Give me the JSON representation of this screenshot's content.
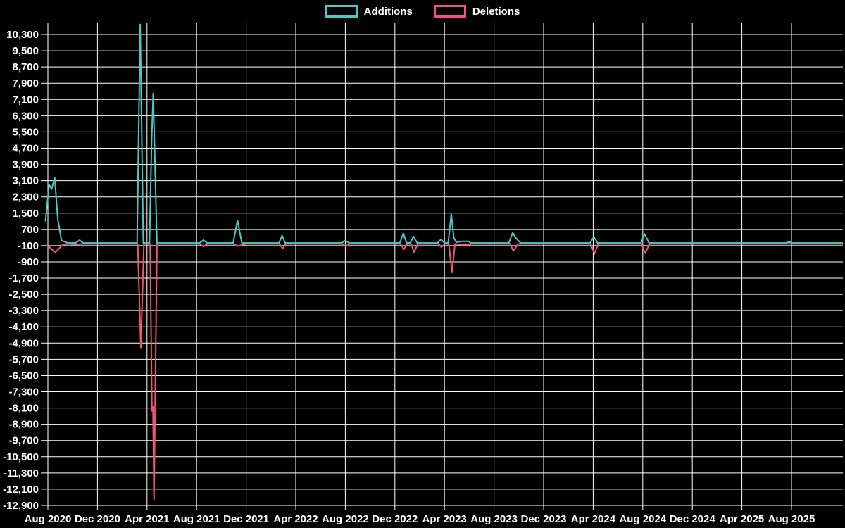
{
  "legend": {
    "items": [
      {
        "label": "Additions",
        "color": "#4dc8c2"
      },
      {
        "label": "Deletions",
        "color": "#f4547c"
      }
    ]
  },
  "colors": {
    "background": "#000000",
    "grid": "#ffffff",
    "text": "#ffffff",
    "additions": "#4dc8c2",
    "deletions": "#f4547c"
  },
  "chart_data": {
    "type": "line",
    "title": "",
    "xlabel": "",
    "ylabel": "",
    "legend_position": "top-center",
    "grid": true,
    "ylim": [
      -12900,
      10300
    ],
    "y_tick_step": 800,
    "y_ticks": [
      10300,
      9500,
      8700,
      7900,
      7100,
      6300,
      5500,
      4700,
      3900,
      3100,
      2300,
      1500,
      700,
      -100,
      -900,
      -1700,
      -2500,
      -3300,
      -4100,
      -4900,
      -5700,
      -6500,
      -7300,
      -8100,
      -8900,
      -9700,
      -10500,
      -11300,
      -12100,
      -12900
    ],
    "y_tick_labels": [
      "10,300",
      "9,500",
      "8,700",
      "7,900",
      "7,100",
      "6,300",
      "5,500",
      "4,700",
      "3,900",
      "3,100",
      "2,300",
      "1,500",
      "700",
      "-100",
      "-900",
      "-1,700",
      "-2,500",
      "-3,300",
      "-4,100",
      "-4,900",
      "-5,700",
      "-6,500",
      "-7,300",
      "-8,100",
      "-8,900",
      "-9,700",
      "-10,500",
      "-11,300",
      "-12,100",
      "-12,900"
    ],
    "x_tick_labels": [
      "Aug 2020",
      "Dec 2020",
      "Apr 2021",
      "Aug 2021",
      "Dec 2021",
      "Apr 2022",
      "Aug 2022",
      "Dec 2022",
      "Apr 2023",
      "Aug 2023",
      "Dec 2023",
      "Apr 2024",
      "Aug 2024",
      "Dec 2024",
      "Apr 2025",
      "Aug 2025"
    ],
    "x_unit": "months since Aug 2020 (x ticks every 4 months)",
    "series": [
      {
        "name": "Deletions",
        "color": "#f4547c",
        "points": [
          [
            -0.2,
            -60
          ],
          [
            0.1,
            -160
          ],
          [
            0.6,
            -430
          ],
          [
            1.15,
            -80
          ],
          [
            1.6,
            -15
          ],
          [
            2.3,
            -40
          ],
          [
            2.8,
            -15
          ],
          [
            7.25,
            -15
          ],
          [
            7.5,
            -5150
          ],
          [
            7.75,
            -15
          ],
          [
            8.25,
            -15
          ],
          [
            8.4,
            -8240
          ],
          [
            8.48,
            -8000
          ],
          [
            8.56,
            -12600
          ],
          [
            8.8,
            -15
          ],
          [
            12.25,
            -15
          ],
          [
            12.55,
            -140
          ],
          [
            12.85,
            -15
          ],
          [
            14.95,
            -15
          ],
          [
            15.3,
            -120
          ],
          [
            15.7,
            -60
          ],
          [
            16.0,
            -15
          ],
          [
            18.7,
            -15
          ],
          [
            18.95,
            -250
          ],
          [
            19.2,
            -15
          ],
          [
            23.75,
            -15
          ],
          [
            24.05,
            -140
          ],
          [
            24.35,
            -15
          ],
          [
            28.45,
            -15
          ],
          [
            28.72,
            -280
          ],
          [
            29.0,
            -15
          ],
          [
            29.3,
            -15
          ],
          [
            29.55,
            -420
          ],
          [
            29.85,
            -15
          ],
          [
            31.5,
            -15
          ],
          [
            31.75,
            -170
          ],
          [
            32.05,
            -15
          ],
          [
            32.35,
            -15
          ],
          [
            32.6,
            -1420
          ],
          [
            32.85,
            -15
          ],
          [
            33.35,
            -60
          ],
          [
            34.0,
            -60
          ],
          [
            34.15,
            -15
          ],
          [
            37.3,
            -15
          ],
          [
            37.55,
            -360
          ],
          [
            37.95,
            -15
          ],
          [
            43.8,
            -15
          ],
          [
            44.1,
            -510
          ],
          [
            44.4,
            -15
          ],
          [
            47.9,
            -15
          ],
          [
            48.2,
            -470
          ],
          [
            48.55,
            -15
          ],
          [
            64.15,
            -15
          ]
        ]
      },
      {
        "name": "Additions",
        "color": "#4dc8c2",
        "points": [
          [
            -0.2,
            1100
          ],
          [
            0.1,
            2900
          ],
          [
            0.3,
            2680
          ],
          [
            0.55,
            3250
          ],
          [
            0.8,
            1200
          ],
          [
            1.1,
            150
          ],
          [
            1.6,
            30
          ],
          [
            2.25,
            30
          ],
          [
            2.55,
            170
          ],
          [
            2.85,
            30
          ],
          [
            7.2,
            30
          ],
          [
            7.45,
            10800
          ],
          [
            7.7,
            30
          ],
          [
            8.2,
            30
          ],
          [
            8.38,
            5300
          ],
          [
            8.5,
            7400
          ],
          [
            8.8,
            30
          ],
          [
            12.25,
            30
          ],
          [
            12.55,
            170
          ],
          [
            12.85,
            30
          ],
          [
            14.95,
            30
          ],
          [
            15.3,
            1150
          ],
          [
            15.65,
            30
          ],
          [
            18.65,
            30
          ],
          [
            18.9,
            400
          ],
          [
            19.15,
            30
          ],
          [
            23.7,
            30
          ],
          [
            24.0,
            160
          ],
          [
            24.3,
            30
          ],
          [
            28.4,
            30
          ],
          [
            28.68,
            500
          ],
          [
            28.95,
            40
          ],
          [
            29.25,
            40
          ],
          [
            29.5,
            360
          ],
          [
            29.8,
            30
          ],
          [
            31.45,
            30
          ],
          [
            31.72,
            210
          ],
          [
            32.0,
            30
          ],
          [
            32.3,
            30
          ],
          [
            32.55,
            1450
          ],
          [
            32.75,
            300
          ],
          [
            32.95,
            70
          ],
          [
            33.4,
            110
          ],
          [
            33.95,
            110
          ],
          [
            34.1,
            30
          ],
          [
            37.2,
            30
          ],
          [
            37.5,
            530
          ],
          [
            37.8,
            250
          ],
          [
            38.15,
            30
          ],
          [
            43.75,
            30
          ],
          [
            44.05,
            330
          ],
          [
            44.35,
            30
          ],
          [
            47.85,
            30
          ],
          [
            48.15,
            480
          ],
          [
            48.5,
            30
          ],
          [
            59.55,
            30
          ],
          [
            59.8,
            90
          ],
          [
            60.05,
            30
          ],
          [
            64.15,
            30
          ]
        ]
      }
    ]
  }
}
